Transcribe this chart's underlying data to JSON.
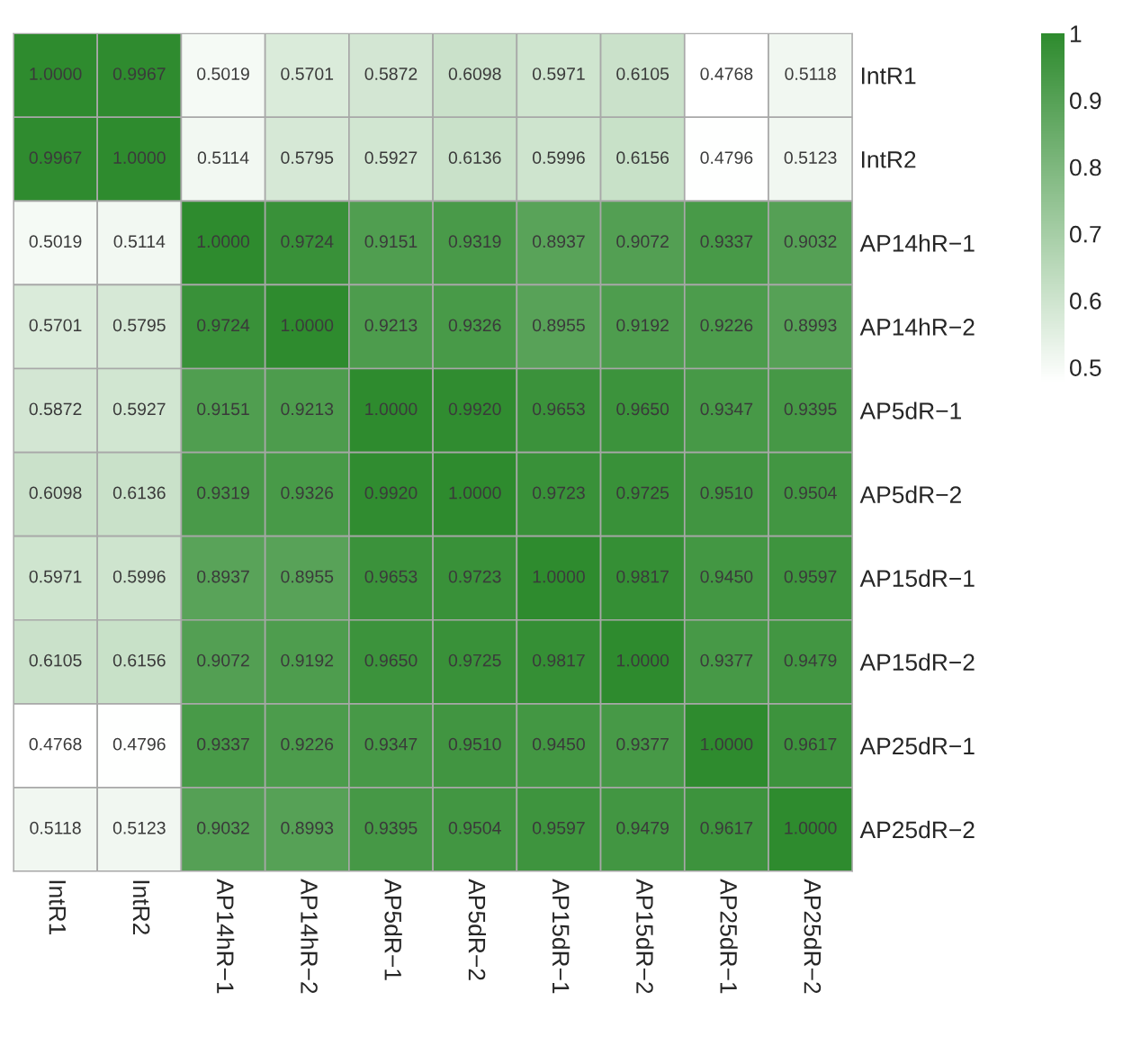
{
  "chart_data": {
    "type": "heatmap",
    "categories": [
      "IntR1",
      "IntR2",
      "AP14hR−1",
      "AP14hR−2",
      "AP5dR−1",
      "AP5dR−2",
      "AP15dR−1",
      "AP15dR−2",
      "AP25dR−1",
      "AP25dR−2"
    ],
    "y_categories": [
      "IntR1",
      "IntR2",
      "AP14hR−1",
      "AP14hR−2",
      "AP5dR−1",
      "AP5dR−2",
      "AP15dR−1",
      "AP15dR−2",
      "AP25dR−1",
      "AP25dR−2"
    ],
    "cells": [
      [
        1.0,
        0.9967,
        0.5019,
        0.5701,
        0.5872,
        0.6098,
        0.5971,
        0.6105,
        0.4768,
        0.5118
      ],
      [
        0.9967,
        1.0,
        0.5114,
        0.5795,
        0.5927,
        0.6136,
        0.5996,
        0.6156,
        0.4796,
        0.5123
      ],
      [
        0.5019,
        0.5114,
        1.0,
        0.9724,
        0.9151,
        0.9319,
        0.8937,
        0.9072,
        0.9337,
        0.9032
      ],
      [
        0.5701,
        0.5795,
        0.9724,
        1.0,
        0.9213,
        0.9326,
        0.8955,
        0.9192,
        0.9226,
        0.8993
      ],
      [
        0.5872,
        0.5927,
        0.9151,
        0.9213,
        1.0,
        0.992,
        0.9653,
        0.965,
        0.9347,
        0.9395
      ],
      [
        0.6098,
        0.6136,
        0.9319,
        0.9326,
        0.992,
        1.0,
        0.9723,
        0.9725,
        0.951,
        0.9504
      ],
      [
        0.5971,
        0.5996,
        0.8937,
        0.8955,
        0.9653,
        0.9723,
        1.0,
        0.9817,
        0.945,
        0.9597
      ],
      [
        0.6105,
        0.6156,
        0.9072,
        0.9192,
        0.965,
        0.9725,
        0.9817,
        1.0,
        0.9377,
        0.9479
      ],
      [
        0.4768,
        0.4796,
        0.9337,
        0.9226,
        0.9347,
        0.951,
        0.945,
        0.9377,
        1.0,
        0.9617
      ],
      [
        0.5118,
        0.5123,
        0.9032,
        0.8993,
        0.9395,
        0.9504,
        0.9597,
        0.9479,
        0.9617,
        1.0
      ]
    ],
    "cell_labels": [
      [
        "1.0000",
        "0.9967",
        "0.5019",
        "0.5701",
        "0.5872",
        "0.6098",
        "0.5971",
        "0.6105",
        "0.4768",
        "0.5118"
      ],
      [
        "0.9967",
        "1.0000",
        "0.5114",
        "0.5795",
        "0.5927",
        "0.6136",
        "0.5996",
        "0.6156",
        "0.4796",
        "0.5123"
      ],
      [
        "0.5019",
        "0.5114",
        "1.0000",
        "0.9724",
        "0.9151",
        "0.9319",
        "0.8937",
        "0.9072",
        "0.9337",
        "0.9032"
      ],
      [
        "0.5701",
        "0.5795",
        "0.9724",
        "1.0000",
        "0.9213",
        "0.9326",
        "0.8955",
        "0.9192",
        "0.9226",
        "0.8993"
      ],
      [
        "0.5872",
        "0.5927",
        "0.9151",
        "0.9213",
        "1.0000",
        "0.9920",
        "0.9653",
        "0.9650",
        "0.9347",
        "0.9395"
      ],
      [
        "0.6098",
        "0.6136",
        "0.9319",
        "0.9326",
        "0.9920",
        "1.0000",
        "0.9723",
        "0.9725",
        "0.9510",
        "0.9504"
      ],
      [
        "0.5971",
        "0.5996",
        "0.8937",
        "0.8955",
        "0.9653",
        "0.9723",
        "1.0000",
        "0.9817",
        "0.9450",
        "0.9597"
      ],
      [
        "0.6105",
        "0.6156",
        "0.9072",
        "0.9192",
        "0.9650",
        "0.9725",
        "0.9817",
        "1.0000",
        "0.9377",
        "0.9479"
      ],
      [
        "0.4768",
        "0.4796",
        "0.9337",
        "0.9226",
        "0.9347",
        "0.9510",
        "0.9450",
        "0.9377",
        "1.0000",
        "0.9617"
      ],
      [
        "0.5118",
        "0.5123",
        "0.9032",
        "0.8993",
        "0.9395",
        "0.9504",
        "0.9597",
        "0.9479",
        "0.9617",
        "1.0000"
      ]
    ],
    "colors": [
      "#ffffff",
      "#2e8b2e"
    ],
    "clim": [
      0.4768,
      1
    ],
    "cticks": [
      0.5,
      0.6,
      0.7,
      0.8,
      0.9,
      1
    ]
  }
}
